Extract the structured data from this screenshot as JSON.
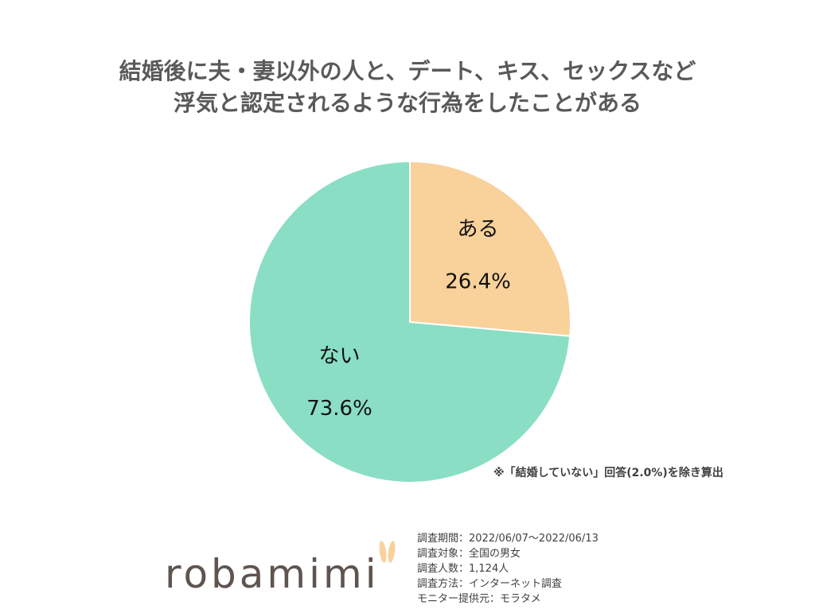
{
  "title": {
    "line1": "結婚後に夫・妻以外の人と、デート、キス、セックスなど",
    "line2": "浮気と認定されるような行為をしたことがある"
  },
  "chart_data": {
    "type": "pie",
    "slices": [
      {
        "label": "ある",
        "value": 26.4,
        "value_label": "26.4%",
        "color": "#f8d19b"
      },
      {
        "label": "ない",
        "value": 73.6,
        "value_label": "73.6%",
        "color": "#8adec4"
      }
    ],
    "start": "12 o'clock",
    "direction": "clockwise"
  },
  "note": "※「結婚していない」回答(2.0%)を除き算出",
  "logo": {
    "text": "robamimi"
  },
  "survey": [
    "調査期間：2022/06/07～2022/06/13",
    "調査対象：全国の男女",
    "調査人数：1,124人",
    "調査方法：インターネット調査",
    "モニター提供元：モラタメ"
  ]
}
